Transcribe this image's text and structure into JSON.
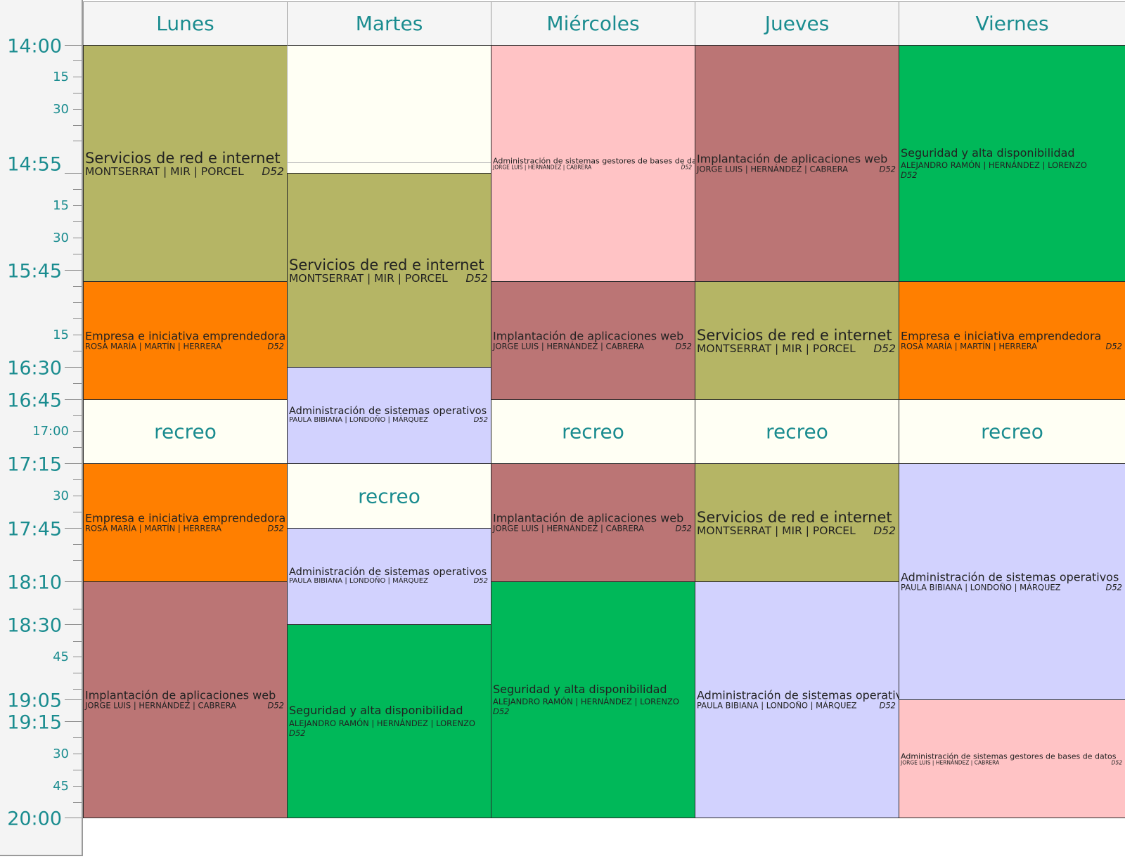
{
  "time_axis": {
    "major_labels": [
      "14:00",
      "14:55",
      "15:45",
      "16:30",
      "16:45",
      "17:15",
      "17:45",
      "18:10",
      "18:30",
      "19:05",
      "19:15",
      "20:00"
    ],
    "minor_labels": [
      "15",
      "30",
      "15",
      "30",
      "15",
      "17:00",
      "30",
      "45",
      "30",
      "45"
    ]
  },
  "days": [
    "Lunes",
    "Martes",
    "Miércoles",
    "Jueves",
    "Viernes"
  ],
  "colors": {
    "servicios": "#b5b565",
    "empresa": "#ff7f00",
    "implantacion": "#bb7575",
    "admin_so": "#d2d2fe",
    "admin_bd": "#ffc3c5",
    "seguridad": "#00b859",
    "recreo": "#fffff4",
    "accent_text": "#1a8c8f"
  },
  "schedule": {
    "lunes": [
      {
        "subject": "Servicios de red e internet",
        "teacher": "MONTSERRAT | MIR | PORCEL",
        "room": "D52"
      },
      {
        "subject": "Empresa e iniciativa emprendedora",
        "teacher": "ROSA MARÍA | MARTÍN | HERRERA",
        "room": "D52"
      },
      {
        "label": "recreo"
      },
      {
        "subject": "Empresa e iniciativa emprendedora",
        "teacher": "ROSA MARÍA | MARTÍN | HERRERA",
        "room": "D52"
      },
      {
        "subject": "Implantación de aplicaciones web",
        "teacher": "JORGE LUIS | HERNÁNDEZ | CABRERA",
        "room": "D52"
      }
    ],
    "martes": [
      {
        "subject": "Servicios de red e internet",
        "teacher": "MONTSERRAT | MIR | PORCEL",
        "room": "D52"
      },
      {
        "subject": "Administración de sistemas operativos",
        "teacher": "PAULA BIBIANA | LONDOÑO | MÁRQUEZ",
        "room": "D52"
      },
      {
        "label": "recreo"
      },
      {
        "subject": "Administración de sistemas operativos",
        "teacher": "PAULA BIBIANA | LONDOÑO | MÁRQUEZ",
        "room": "D52"
      },
      {
        "subject": "Seguridad y alta disponibilidad",
        "teacher": "ALEJANDRO RAMÓN | HERNÁNDEZ | LORENZO",
        "room": "D52"
      }
    ],
    "miercoles": [
      {
        "subject": "Administración de sistemas gestores de bases de datos",
        "teacher": "JORGE LUIS | HERNÁNDEZ | CABRERA",
        "room": "D52"
      },
      {
        "subject": "Implantación de aplicaciones web",
        "teacher": "JORGE LUIS | HERNÁNDEZ | CABRERA",
        "room": "D52"
      },
      {
        "label": "recreo"
      },
      {
        "subject": "Implantación de aplicaciones web",
        "teacher": "JORGE LUIS | HERNÁNDEZ | CABRERA",
        "room": "D52"
      },
      {
        "subject": "Seguridad y alta disponibilidad",
        "teacher": "ALEJANDRO RAMÓN | HERNÁNDEZ | LORENZO",
        "room": "D52"
      }
    ],
    "jueves": [
      {
        "subject": "Implantación de aplicaciones web",
        "teacher": "JORGE LUIS | HERNÁNDEZ | CABRERA",
        "room": "D52"
      },
      {
        "subject": "Servicios de red e internet",
        "teacher": "MONTSERRAT | MIR | PORCEL",
        "room": "D52"
      },
      {
        "label": "recreo"
      },
      {
        "subject": "Servicios de red e internet",
        "teacher": "MONTSERRAT | MIR | PORCEL",
        "room": "D52"
      },
      {
        "subject": "Administración de sistemas operativos",
        "teacher": "PAULA BIBIANA | LONDOÑO | MÁRQUEZ",
        "room": "D52"
      }
    ],
    "viernes": [
      {
        "subject": "Seguridad y alta disponibilidad",
        "teacher": "ALEJANDRO RAMÓN | HERNÁNDEZ | LORENZO",
        "room": "D52"
      },
      {
        "subject": "Empresa e iniciativa emprendedora",
        "teacher": "ROSA MARÍA | MARTÍN | HERRERA",
        "room": "D52"
      },
      {
        "label": "recreo"
      },
      {
        "subject": "Administración de sistemas operativos",
        "teacher": "PAULA BIBIANA | LONDOÑO | MÁRQUEZ",
        "room": "D52"
      },
      {
        "subject": "Administración de sistemas gestores de bases de datos",
        "teacher": "JORGE LUIS | HERNÁNDEZ | CABRERA",
        "room": "D52"
      }
    ]
  }
}
